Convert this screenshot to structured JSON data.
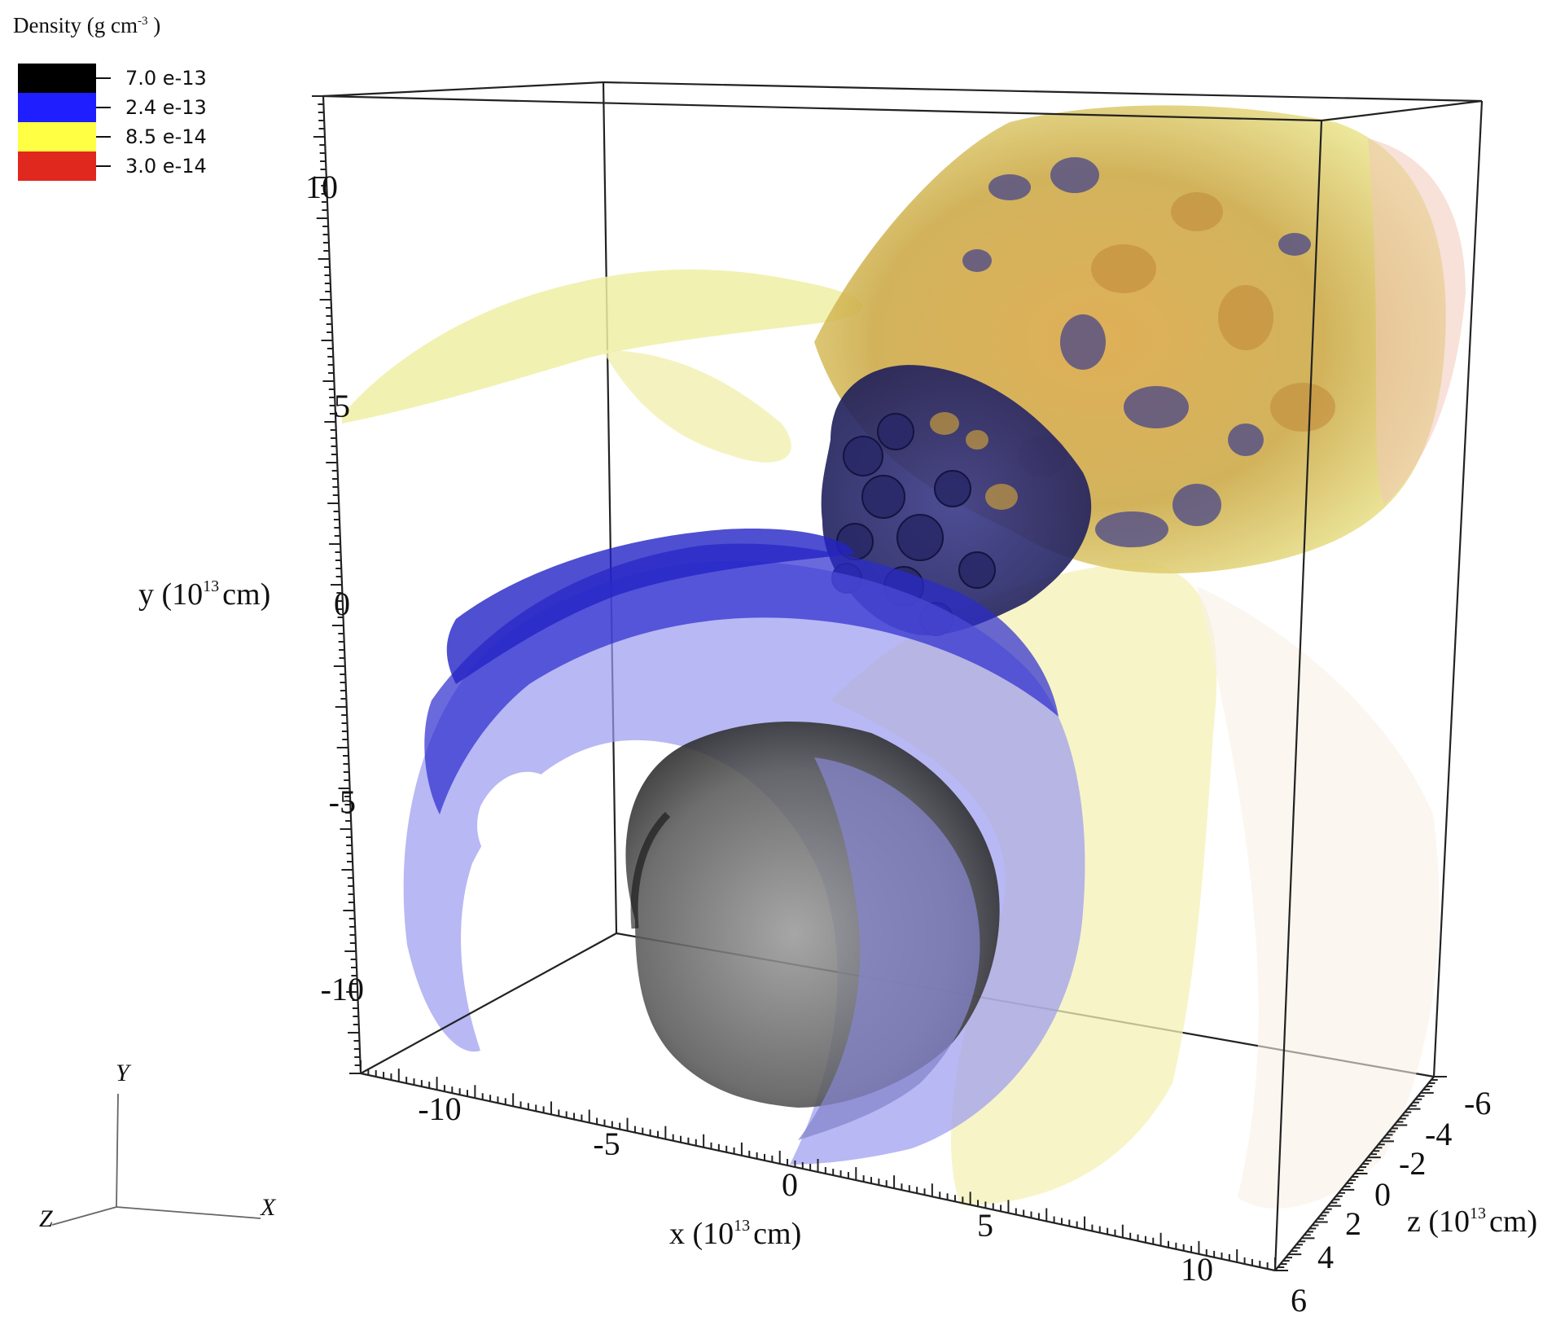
{
  "legend": {
    "title": "Density (g cm",
    "title_sup": "-3",
    "title_close": " )",
    "entries": [
      {
        "label": "7.0 e-13",
        "color": "#000000"
      },
      {
        "label": "2.4 e-13",
        "color": "#1e1eff"
      },
      {
        "label": "8.5 e-14",
        "color": "#ffff44"
      },
      {
        "label": "3.0 e-14",
        "color": "#e0281e"
      }
    ]
  },
  "axes": {
    "x": {
      "label": "x (10",
      "sup": "13",
      "unit": "cm)",
      "ticks": [
        "-10",
        "-5",
        "0",
        "5",
        "10"
      ]
    },
    "y": {
      "label": "y (10",
      "sup": "13",
      "unit": "cm)",
      "ticks": [
        "10",
        "5",
        "0",
        "-5",
        "-10"
      ]
    },
    "z": {
      "label": "z (10",
      "sup": "13",
      "unit": "cm)",
      "ticks": [
        "-6",
        "-4",
        "-2",
        "0",
        "2",
        "4",
        "6"
      ]
    }
  },
  "triad": {
    "x": "X",
    "y": "Y",
    "z": "Z"
  }
}
